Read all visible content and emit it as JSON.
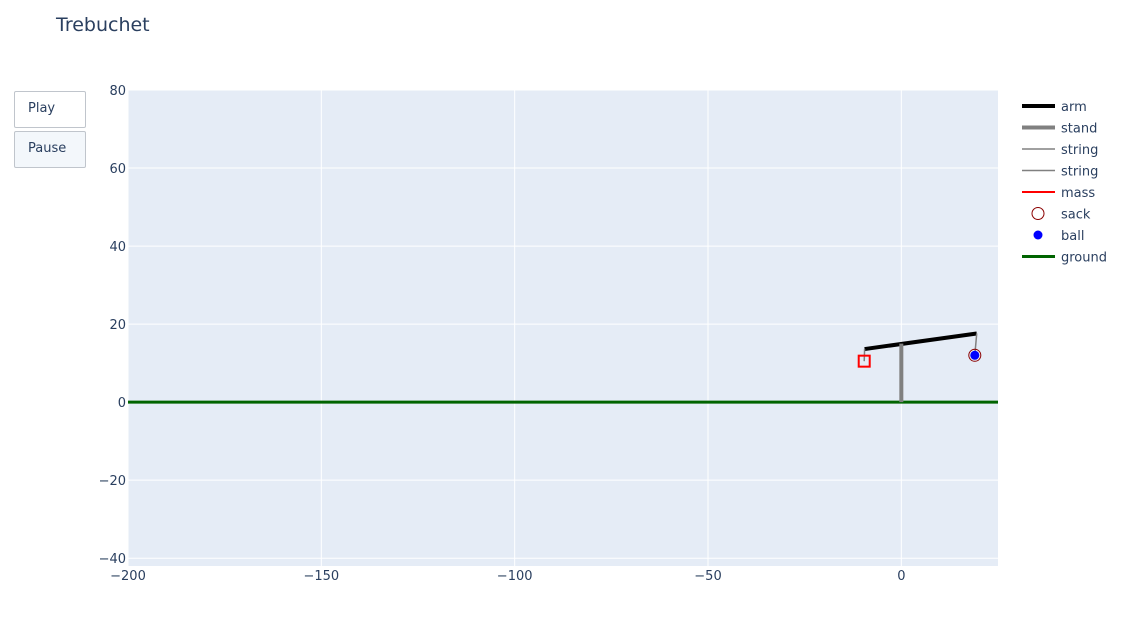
{
  "title": "Trebuchet",
  "buttons": [
    {
      "label": "Play"
    },
    {
      "label": "Pause"
    }
  ],
  "chart_data": {
    "type": "line",
    "title": "Trebuchet",
    "xlim": [
      -200,
      25
    ],
    "ylim": [
      -42,
      80
    ],
    "xticks": [
      -200,
      -150,
      -100,
      -50,
      0
    ],
    "yticks": [
      -40,
      -20,
      0,
      20,
      40,
      60,
      80
    ],
    "grid": true,
    "legend_position": "right",
    "series": [
      {
        "name": "arm",
        "color": "#000000",
        "width": 4,
        "mode": "line",
        "points": [
          [
            -9.5,
            13.6
          ],
          [
            19.5,
            17.6
          ]
        ]
      },
      {
        "name": "stand",
        "color": "#808080",
        "width": 4,
        "mode": "line",
        "points": [
          [
            0,
            0
          ],
          [
            0,
            15
          ]
        ]
      },
      {
        "name": "string",
        "color": "#808080",
        "width": 1.5,
        "mode": "line",
        "points": [
          [
            19.5,
            17.6
          ],
          [
            19,
            12
          ]
        ]
      },
      {
        "name": "string",
        "color": "#808080",
        "width": 1.5,
        "mode": "line",
        "points": [
          [
            -9.5,
            13.6
          ],
          [
            -9.6,
            10.5
          ]
        ]
      },
      {
        "name": "mass",
        "color": "#ff0000",
        "width": 2,
        "mode": "square",
        "points": [
          [
            -9.6,
            10.5
          ]
        ]
      },
      {
        "name": "sack",
        "color": "#8b0000",
        "width": 1,
        "mode": "open-circle",
        "points": [
          [
            19,
            12
          ]
        ]
      },
      {
        "name": "ball",
        "color": "#0000ff",
        "width": 1,
        "mode": "circle",
        "points": [
          [
            19,
            12
          ]
        ]
      },
      {
        "name": "ground",
        "color": "#006400",
        "width": 3,
        "mode": "line",
        "points": [
          [
            -200,
            0
          ],
          [
            25,
            0
          ]
        ]
      }
    ]
  }
}
